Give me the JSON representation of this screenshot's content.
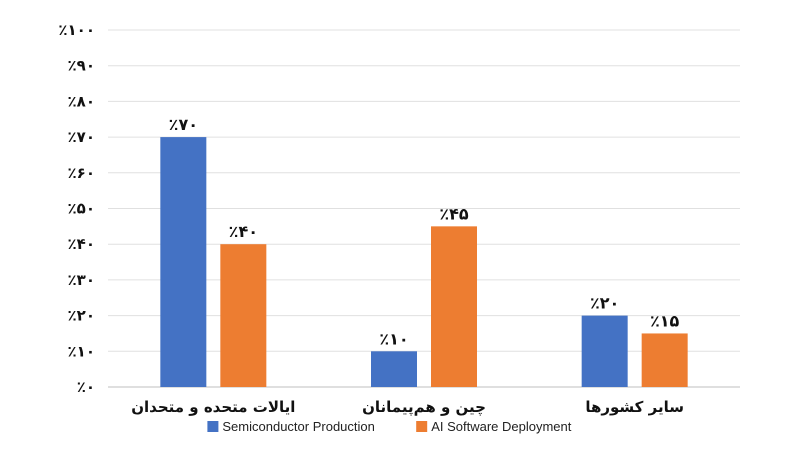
{
  "chart_data": {
    "type": "bar",
    "categories": [
      "ایالات متحده و متحدان",
      "چین و هم‌پیمانان",
      "سایر کشورها"
    ],
    "series": [
      {
        "name": "Semiconductor Production",
        "color": "#4472C4",
        "values": [
          70,
          10,
          20
        ],
        "labels": [
          "٪۷۰",
          "٪۱۰",
          "٪۲۰"
        ]
      },
      {
        "name": "AI Software Deployment",
        "color": "#ED7D31",
        "values": [
          40,
          45,
          15
        ],
        "labels": [
          "٪۴۰",
          "٪۴۵",
          "٪۱۵"
        ]
      }
    ],
    "ylim": [
      0,
      100
    ],
    "yticks": [
      0,
      10,
      20,
      30,
      40,
      50,
      60,
      70,
      80,
      90,
      100
    ],
    "ytick_labels": [
      "٪۰",
      "٪۱۰",
      "٪۲۰",
      "٪۳۰",
      "٪۴۰",
      "٪۵۰",
      "٪۶۰",
      "٪۷۰",
      "٪۸۰",
      "٪۹۰",
      "٪۱۰۰"
    ],
    "grid": true,
    "legend_position": "bottom",
    "title": "",
    "xlabel": "",
    "ylabel": ""
  }
}
